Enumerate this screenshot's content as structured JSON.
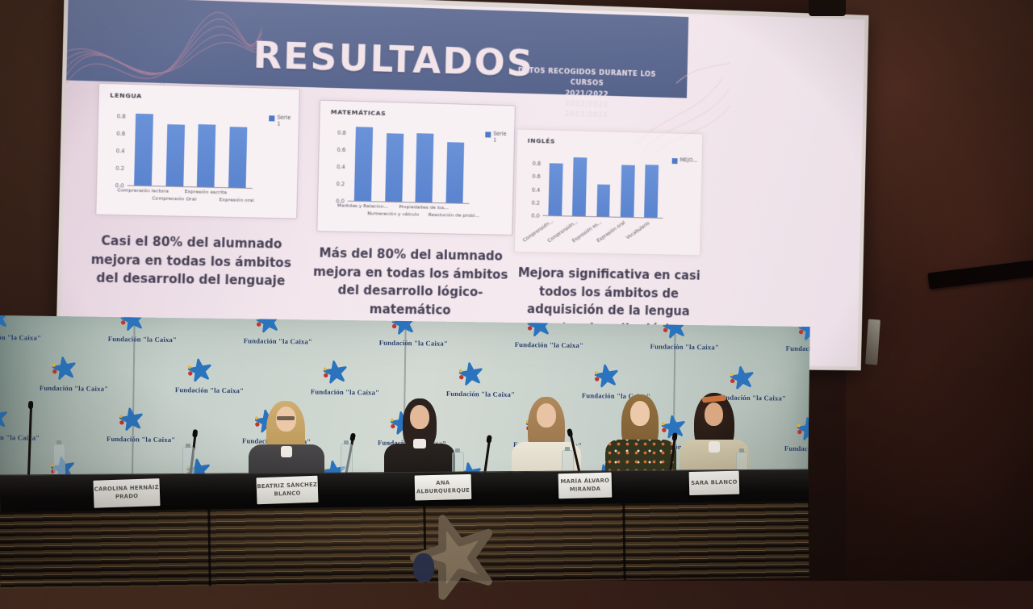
{
  "slide": {
    "title": "RESULTADOS",
    "subtitle": "DATOS RECOGIDOS DURANTE LOS CURSOS\n2021/2022\n2022/2023\n2023/2024",
    "captions": [
      "Casi el 80% del alumnado mejora en todas los ámbitos del desarrollo del lenguaje",
      "Más del 80% del alumnado mejora en todas los ámbitos del desarrollo lógico-matemático",
      "Mejora significativa en casi todos los ámbitos de adquisición de la lengua extranjera (inglés)"
    ]
  },
  "chart_data": [
    {
      "type": "bar",
      "title": "LENGUA",
      "categories": [
        "Comprensión lectora",
        "Comprensión Oral",
        "Expresión escrita",
        "Expresión oral"
      ],
      "values": [
        0.82,
        0.71,
        0.72,
        0.7
      ],
      "yticks": [
        0.0,
        0.2,
        0.4,
        0.6,
        0.8
      ],
      "ylim": [
        0,
        0.9
      ],
      "legend": "Serie 1",
      "label_style": "staggered",
      "grid": false,
      "legend_position": "right"
    },
    {
      "type": "bar",
      "title": "MATEMÁTICAS",
      "categories": [
        "Medidas y Relacion...",
        "Numeración y cálculo",
        "Propiedades de los...",
        "Resolución de probl..."
      ],
      "values": [
        0.86,
        0.8,
        0.81,
        0.71
      ],
      "yticks": [
        0.0,
        0.2,
        0.4,
        0.6,
        0.8
      ],
      "ylim": [
        0,
        0.9
      ],
      "legend": "Serie 1",
      "label_style": "staggered",
      "grid": false,
      "legend_position": "right"
    },
    {
      "type": "bar",
      "title": "INGLÉS",
      "categories": [
        "Comprensión...",
        "Comprensión...",
        "Expresión es...",
        "Expresión oral",
        "Vocabulario"
      ],
      "values": [
        0.8,
        0.9,
        0.5,
        0.8,
        0.82
      ],
      "yticks": [
        0.0,
        0.2,
        0.4,
        0.6,
        0.8
      ],
      "ylim": [
        0,
        1.0
      ],
      "legend": "MEJO...",
      "label_style": "rotated",
      "grid": false,
      "legend_position": "right"
    }
  ],
  "backdrop": {
    "logo_text": "Fundación \"la Caixa\""
  },
  "panel": {
    "nameplates": [
      "CAROLINA HERNÁIZ\nPRADO",
      "BEATRIZ SÁNCHEZ\nBLANCO",
      "ANA ALBURQUERQUE",
      "MARÍA ÁLVARO\nMIRANDA",
      "SARA BLANCO"
    ]
  },
  "colors": {
    "bar_blue": "#5b84cf",
    "band_blue": "#5f6b92",
    "slide_bg": "#f0e4ea",
    "logo_blue": "#2b74bd",
    "logo_navy": "#2a3f6b",
    "backdrop_gray_green": "#c7d1cb"
  }
}
